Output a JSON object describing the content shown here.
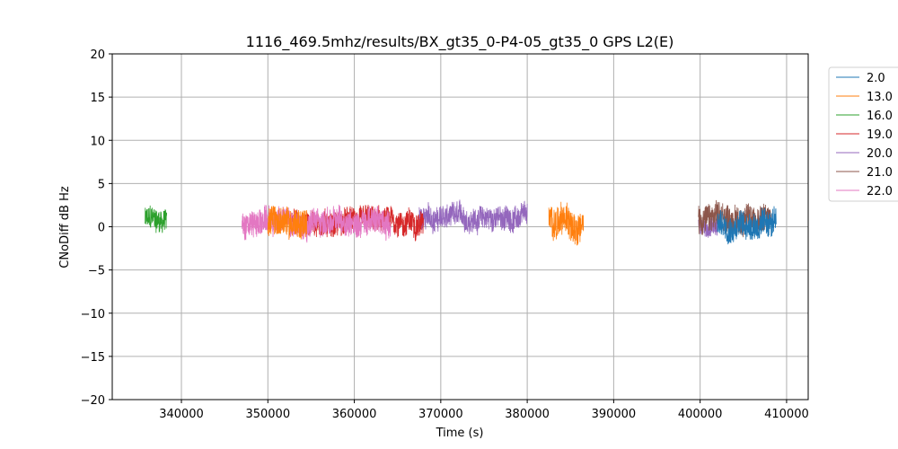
{
  "chart_data": {
    "type": "line",
    "title": "1116_469.5mhz/results/BX_gt35_0-P4-05_gt35_0 GPS L2(E)",
    "xlabel": "Time (s)",
    "ylabel": "CNoDiff dB Hz",
    "xlim": [
      332000,
      412500
    ],
    "ylim": [
      -20,
      20
    ],
    "xticks": [
      340000,
      350000,
      360000,
      370000,
      380000,
      390000,
      400000,
      410000
    ],
    "xtick_labels": [
      "340000",
      "350000",
      "360000",
      "370000",
      "380000",
      "390000",
      "400000",
      "410000"
    ],
    "yticks": [
      -20,
      -15,
      -10,
      -5,
      0,
      5,
      10,
      15,
      20
    ],
    "ytick_labels": [
      "−20",
      "−15",
      "−10",
      "−5",
      "0",
      "5",
      "10",
      "15",
      "20"
    ],
    "grid": true,
    "legend_position": "outside-top-right",
    "series": [
      {
        "name": "2.0",
        "color": "#1f77b4",
        "segments": [
          {
            "x_start": 402000,
            "x_end": 408800,
            "center": 0.3,
            "amplitude": 1.5,
            "min": -3.7,
            "max": 3.6
          }
        ]
      },
      {
        "name": "13.0",
        "color": "#ff7f0e",
        "segments": [
          {
            "x_start": 350000,
            "x_end": 354500,
            "center": 0.5,
            "amplitude": 1.7,
            "min": -2.5,
            "max": 4.0
          },
          {
            "x_start": 382500,
            "x_end": 386500,
            "center": 0.5,
            "amplitude": 1.8,
            "min": -3.0,
            "max": 4.0
          }
        ]
      },
      {
        "name": "16.0",
        "color": "#2ca02c",
        "segments": [
          {
            "x_start": 335800,
            "x_end": 338300,
            "center": 0.8,
            "amplitude": 1.3,
            "min": -2.3,
            "max": 4.3
          }
        ]
      },
      {
        "name": "19.0",
        "color": "#d62728",
        "segments": [
          {
            "x_start": 352500,
            "x_end": 368000,
            "center": 0.5,
            "amplitude": 1.4,
            "min": -3.8,
            "max": 4.2
          }
        ]
      },
      {
        "name": "20.0",
        "color": "#9467bd",
        "segments": [
          {
            "x_start": 367500,
            "x_end": 380000,
            "center": 1.0,
            "amplitude": 1.3,
            "min": -2.8,
            "max": 3.6
          },
          {
            "x_start": 399800,
            "x_end": 402000,
            "center": 0.0,
            "amplitude": 1.0,
            "min": -2.0,
            "max": 2.0
          }
        ]
      },
      {
        "name": "21.0",
        "color": "#8c564b",
        "segments": [
          {
            "x_start": 399800,
            "x_end": 408200,
            "center": 0.9,
            "amplitude": 1.6,
            "min": -4.6,
            "max": 6.6
          }
        ]
      },
      {
        "name": "22.0",
        "color": "#e377c2",
        "segments": [
          {
            "x_start": 347000,
            "x_end": 364200,
            "center": 0.6,
            "amplitude": 1.5,
            "min": -2.5,
            "max": 4.9
          }
        ]
      }
    ]
  }
}
